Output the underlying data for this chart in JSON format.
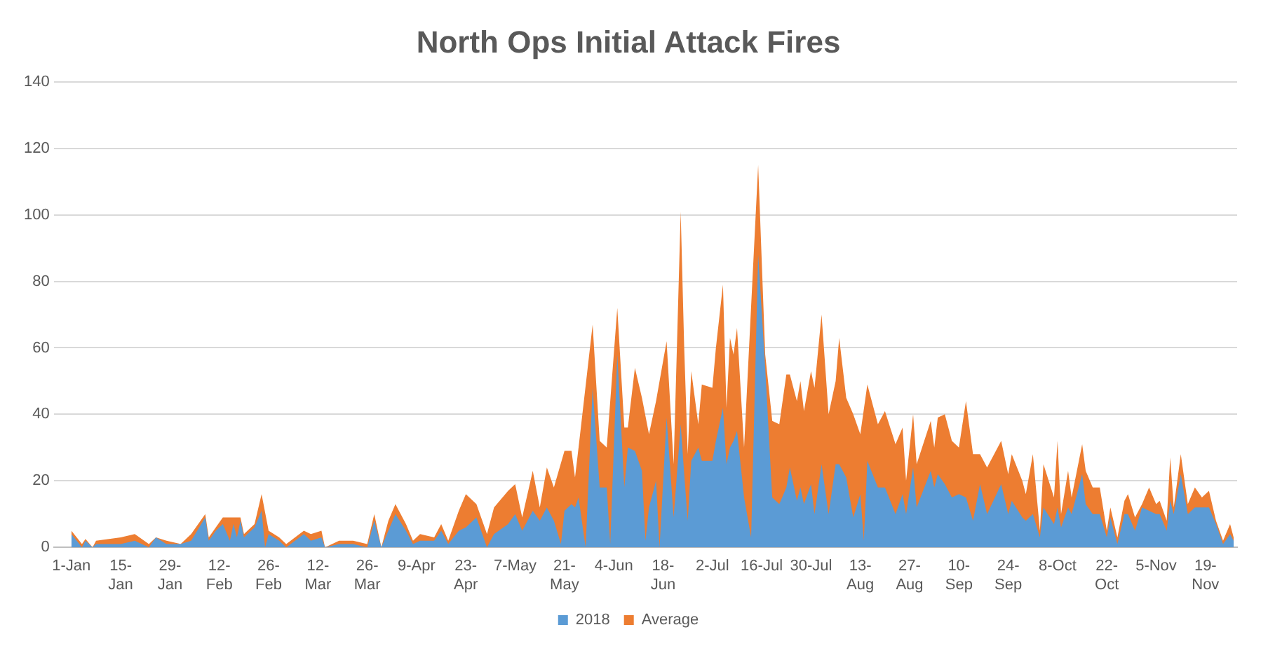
{
  "chart_data": {
    "type": "area",
    "title": "North Ops Initial Attack Fires",
    "x": [
      "2018-01-01",
      "2018-01-04",
      "2018-01-05",
      "2018-01-07",
      "2018-01-08",
      "2018-01-15",
      "2018-01-19",
      "2018-01-23",
      "2018-01-25",
      "2018-01-28",
      "2018-02-01",
      "2018-02-04",
      "2018-02-08",
      "2018-02-09",
      "2018-02-11",
      "2018-02-13",
      "2018-02-15",
      "2018-02-16",
      "2018-02-17",
      "2018-02-18",
      "2018-02-19",
      "2018-02-22",
      "2018-02-24",
      "2018-02-25",
      "2018-02-26",
      "2018-03-01",
      "2018-03-03",
      "2018-03-08",
      "2018-03-10",
      "2018-03-13",
      "2018-03-14",
      "2018-03-18",
      "2018-03-22",
      "2018-03-26",
      "2018-03-28",
      "2018-03-30",
      "2018-04-01",
      "2018-04-03",
      "2018-04-06",
      "2018-04-08",
      "2018-04-10",
      "2018-04-14",
      "2018-04-16",
      "2018-04-18",
      "2018-04-21",
      "2018-04-23",
      "2018-04-26",
      "2018-04-29",
      "2018-05-01",
      "2018-05-05",
      "2018-05-07",
      "2018-05-09",
      "2018-05-12",
      "2018-05-14",
      "2018-05-16",
      "2018-05-18",
      "2018-05-20",
      "2018-05-21",
      "2018-05-23",
      "2018-05-24",
      "2018-05-25",
      "2018-05-27",
      "2018-05-29",
      "2018-05-31",
      "2018-06-02",
      "2018-06-03",
      "2018-06-05",
      "2018-06-07",
      "2018-06-08",
      "2018-06-10",
      "2018-06-12",
      "2018-06-13",
      "2018-06-14",
      "2018-06-16",
      "2018-06-17",
      "2018-06-19",
      "2018-06-21",
      "2018-06-23",
      "2018-06-24",
      "2018-06-25",
      "2018-06-26",
      "2018-06-28",
      "2018-06-29",
      "2018-07-02",
      "2018-07-03",
      "2018-07-05",
      "2018-07-06",
      "2018-07-07",
      "2018-07-08",
      "2018-07-09",
      "2018-07-11",
      "2018-07-13",
      "2018-07-15",
      "2018-07-17",
      "2018-07-19",
      "2018-07-21",
      "2018-07-23",
      "2018-07-24",
      "2018-07-26",
      "2018-07-27",
      "2018-07-28",
      "2018-07-30",
      "2018-07-31",
      "2018-08-02",
      "2018-08-04",
      "2018-08-06",
      "2018-08-07",
      "2018-08-09",
      "2018-08-11",
      "2018-08-13",
      "2018-08-14",
      "2018-08-15",
      "2018-08-18",
      "2018-08-20",
      "2018-08-23",
      "2018-08-25",
      "2018-08-26",
      "2018-08-28",
      "2018-08-29",
      "2018-09-02",
      "2018-09-03",
      "2018-09-04",
      "2018-09-06",
      "2018-09-08",
      "2018-09-10",
      "2018-09-12",
      "2018-09-14",
      "2018-09-16",
      "2018-09-18",
      "2018-09-22",
      "2018-09-24",
      "2018-09-25",
      "2018-09-28",
      "2018-09-29",
      "2018-10-01",
      "2018-10-03",
      "2018-10-04",
      "2018-10-07",
      "2018-10-08",
      "2018-10-09",
      "2018-10-11",
      "2018-10-12",
      "2018-10-15",
      "2018-10-16",
      "2018-10-18",
      "2018-10-20",
      "2018-10-22",
      "2018-10-23",
      "2018-10-25",
      "2018-10-27",
      "2018-10-28",
      "2018-10-30",
      "2018-11-01",
      "2018-11-03",
      "2018-11-05",
      "2018-11-06",
      "2018-11-08",
      "2018-11-09",
      "2018-11-10",
      "2018-11-12",
      "2018-11-14",
      "2018-11-16",
      "2018-11-18",
      "2018-11-20",
      "2018-11-22",
      "2018-11-24",
      "2018-11-26",
      "2018-11-27"
    ],
    "series": [
      {
        "name": "2018",
        "color": "#5b9bd5",
        "values": [
          4,
          0,
          2,
          0,
          1,
          1,
          2,
          0,
          3,
          1,
          1,
          2,
          9,
          2,
          5,
          7,
          2,
          7,
          3,
          8,
          3,
          6,
          11,
          0,
          4,
          2,
          0,
          4,
          2,
          3,
          0,
          1,
          1,
          0,
          8,
          0,
          5,
          10,
          5,
          1,
          2,
          2,
          5,
          1,
          5,
          6,
          9,
          0,
          4,
          7,
          10,
          5,
          11,
          8,
          12,
          8,
          1,
          11,
          13,
          12,
          15,
          0,
          48,
          18,
          18,
          1,
          58,
          18,
          30,
          29,
          23,
          2,
          12,
          20,
          0,
          39,
          9,
          37,
          22,
          8,
          26,
          30,
          26,
          26,
          32,
          42,
          25,
          30,
          32,
          35,
          15,
          3,
          88,
          54,
          15,
          13,
          18,
          24,
          14,
          18,
          13,
          19,
          10,
          25,
          10,
          25,
          25,
          21,
          9,
          16,
          2,
          26,
          18,
          18,
          10,
          16,
          10,
          24,
          12,
          23,
          18,
          22,
          19,
          15,
          16,
          15,
          8,
          19,
          10,
          19,
          10,
          14,
          9,
          8,
          10,
          3,
          12,
          7,
          12,
          6,
          12,
          10,
          22,
          13,
          10,
          10,
          3,
          9,
          1,
          10,
          10,
          5,
          12,
          11,
          10,
          10,
          5,
          14,
          10,
          22,
          10,
          12,
          12,
          12,
          7,
          1,
          4,
          2
        ]
      },
      {
        "name": "Average",
        "color": "#ed7d31",
        "values": [
          5,
          1,
          2.5,
          0,
          2,
          3,
          4,
          1,
          3,
          2,
          1,
          4,
          10,
          3,
          6,
          9,
          null,
          9,
          null,
          9,
          4,
          7,
          16,
          null,
          5,
          3,
          1,
          5,
          4,
          5,
          0,
          2,
          2,
          1,
          10,
          0,
          8,
          13,
          7,
          2,
          4,
          3,
          7,
          2,
          11,
          16,
          13,
          4,
          12,
          17,
          19,
          9,
          23,
          12,
          24,
          18,
          null,
          29,
          29,
          21,
          30,
          null,
          67,
          32,
          30,
          null,
          72,
          36,
          36,
          54,
          45,
          null,
          34,
          44,
          null,
          62,
          25,
          101,
          60,
          28,
          53,
          37,
          49,
          48,
          60,
          79,
          42,
          63,
          58,
          66,
          30,
          null,
          115,
          58,
          38,
          37,
          52,
          52,
          44,
          50,
          41,
          53,
          48,
          70,
          40,
          50,
          63,
          45,
          40,
          34,
          null,
          49,
          37,
          41,
          31,
          36,
          20,
          40,
          25,
          38,
          30,
          39,
          40,
          32,
          30,
          44,
          28,
          28,
          24,
          32,
          22,
          28,
          20,
          16,
          28,
          5,
          25,
          15,
          32,
          10,
          23,
          15,
          31,
          23,
          18,
          18,
          5,
          12,
          3,
          14,
          16,
          9,
          13,
          18,
          13,
          14,
          8,
          27,
          12,
          28,
          13,
          18,
          15,
          17,
          8,
          2,
          7,
          3
        ]
      }
    ],
    "xlim": [
      "2017-12-27",
      "2018-11-28"
    ],
    "xticks": [
      {
        "value": "2018-01-01",
        "label": "1-Jan"
      },
      {
        "value": "2018-01-15",
        "label": "15-Jan"
      },
      {
        "value": "2018-01-29",
        "label": "29-Jan"
      },
      {
        "value": "2018-02-12",
        "label": "12-Feb"
      },
      {
        "value": "2018-02-26",
        "label": "26-Feb"
      },
      {
        "value": "2018-03-12",
        "label": "12-Mar"
      },
      {
        "value": "2018-03-26",
        "label": "26-Mar"
      },
      {
        "value": "2018-04-09",
        "label": "9-Apr"
      },
      {
        "value": "2018-04-23",
        "label": "23-Apr"
      },
      {
        "value": "2018-05-07",
        "label": "7-May"
      },
      {
        "value": "2018-05-21",
        "label": "21-May"
      },
      {
        "value": "2018-06-04",
        "label": "4-Jun"
      },
      {
        "value": "2018-06-18",
        "label": "18-Jun"
      },
      {
        "value": "2018-07-02",
        "label": "2-Jul"
      },
      {
        "value": "2018-07-16",
        "label": "16-Jul"
      },
      {
        "value": "2018-07-30",
        "label": "30-Jul"
      },
      {
        "value": "2018-08-13",
        "label": "13-Aug"
      },
      {
        "value": "2018-08-27",
        "label": "27-Aug"
      },
      {
        "value": "2018-09-10",
        "label": "10-Sep"
      },
      {
        "value": "2018-09-24",
        "label": "24-Sep"
      },
      {
        "value": "2018-10-08",
        "label": "8-Oct"
      },
      {
        "value": "2018-10-22",
        "label": "22-Oct"
      },
      {
        "value": "2018-11-05",
        "label": "5-Nov"
      },
      {
        "value": "2018-11-19",
        "label": "19-Nov"
      }
    ],
    "ylim": [
      0,
      140
    ],
    "yticks": [
      0,
      20,
      40,
      60,
      80,
      100,
      120,
      140
    ],
    "grid": "y",
    "legend": "bottom"
  }
}
